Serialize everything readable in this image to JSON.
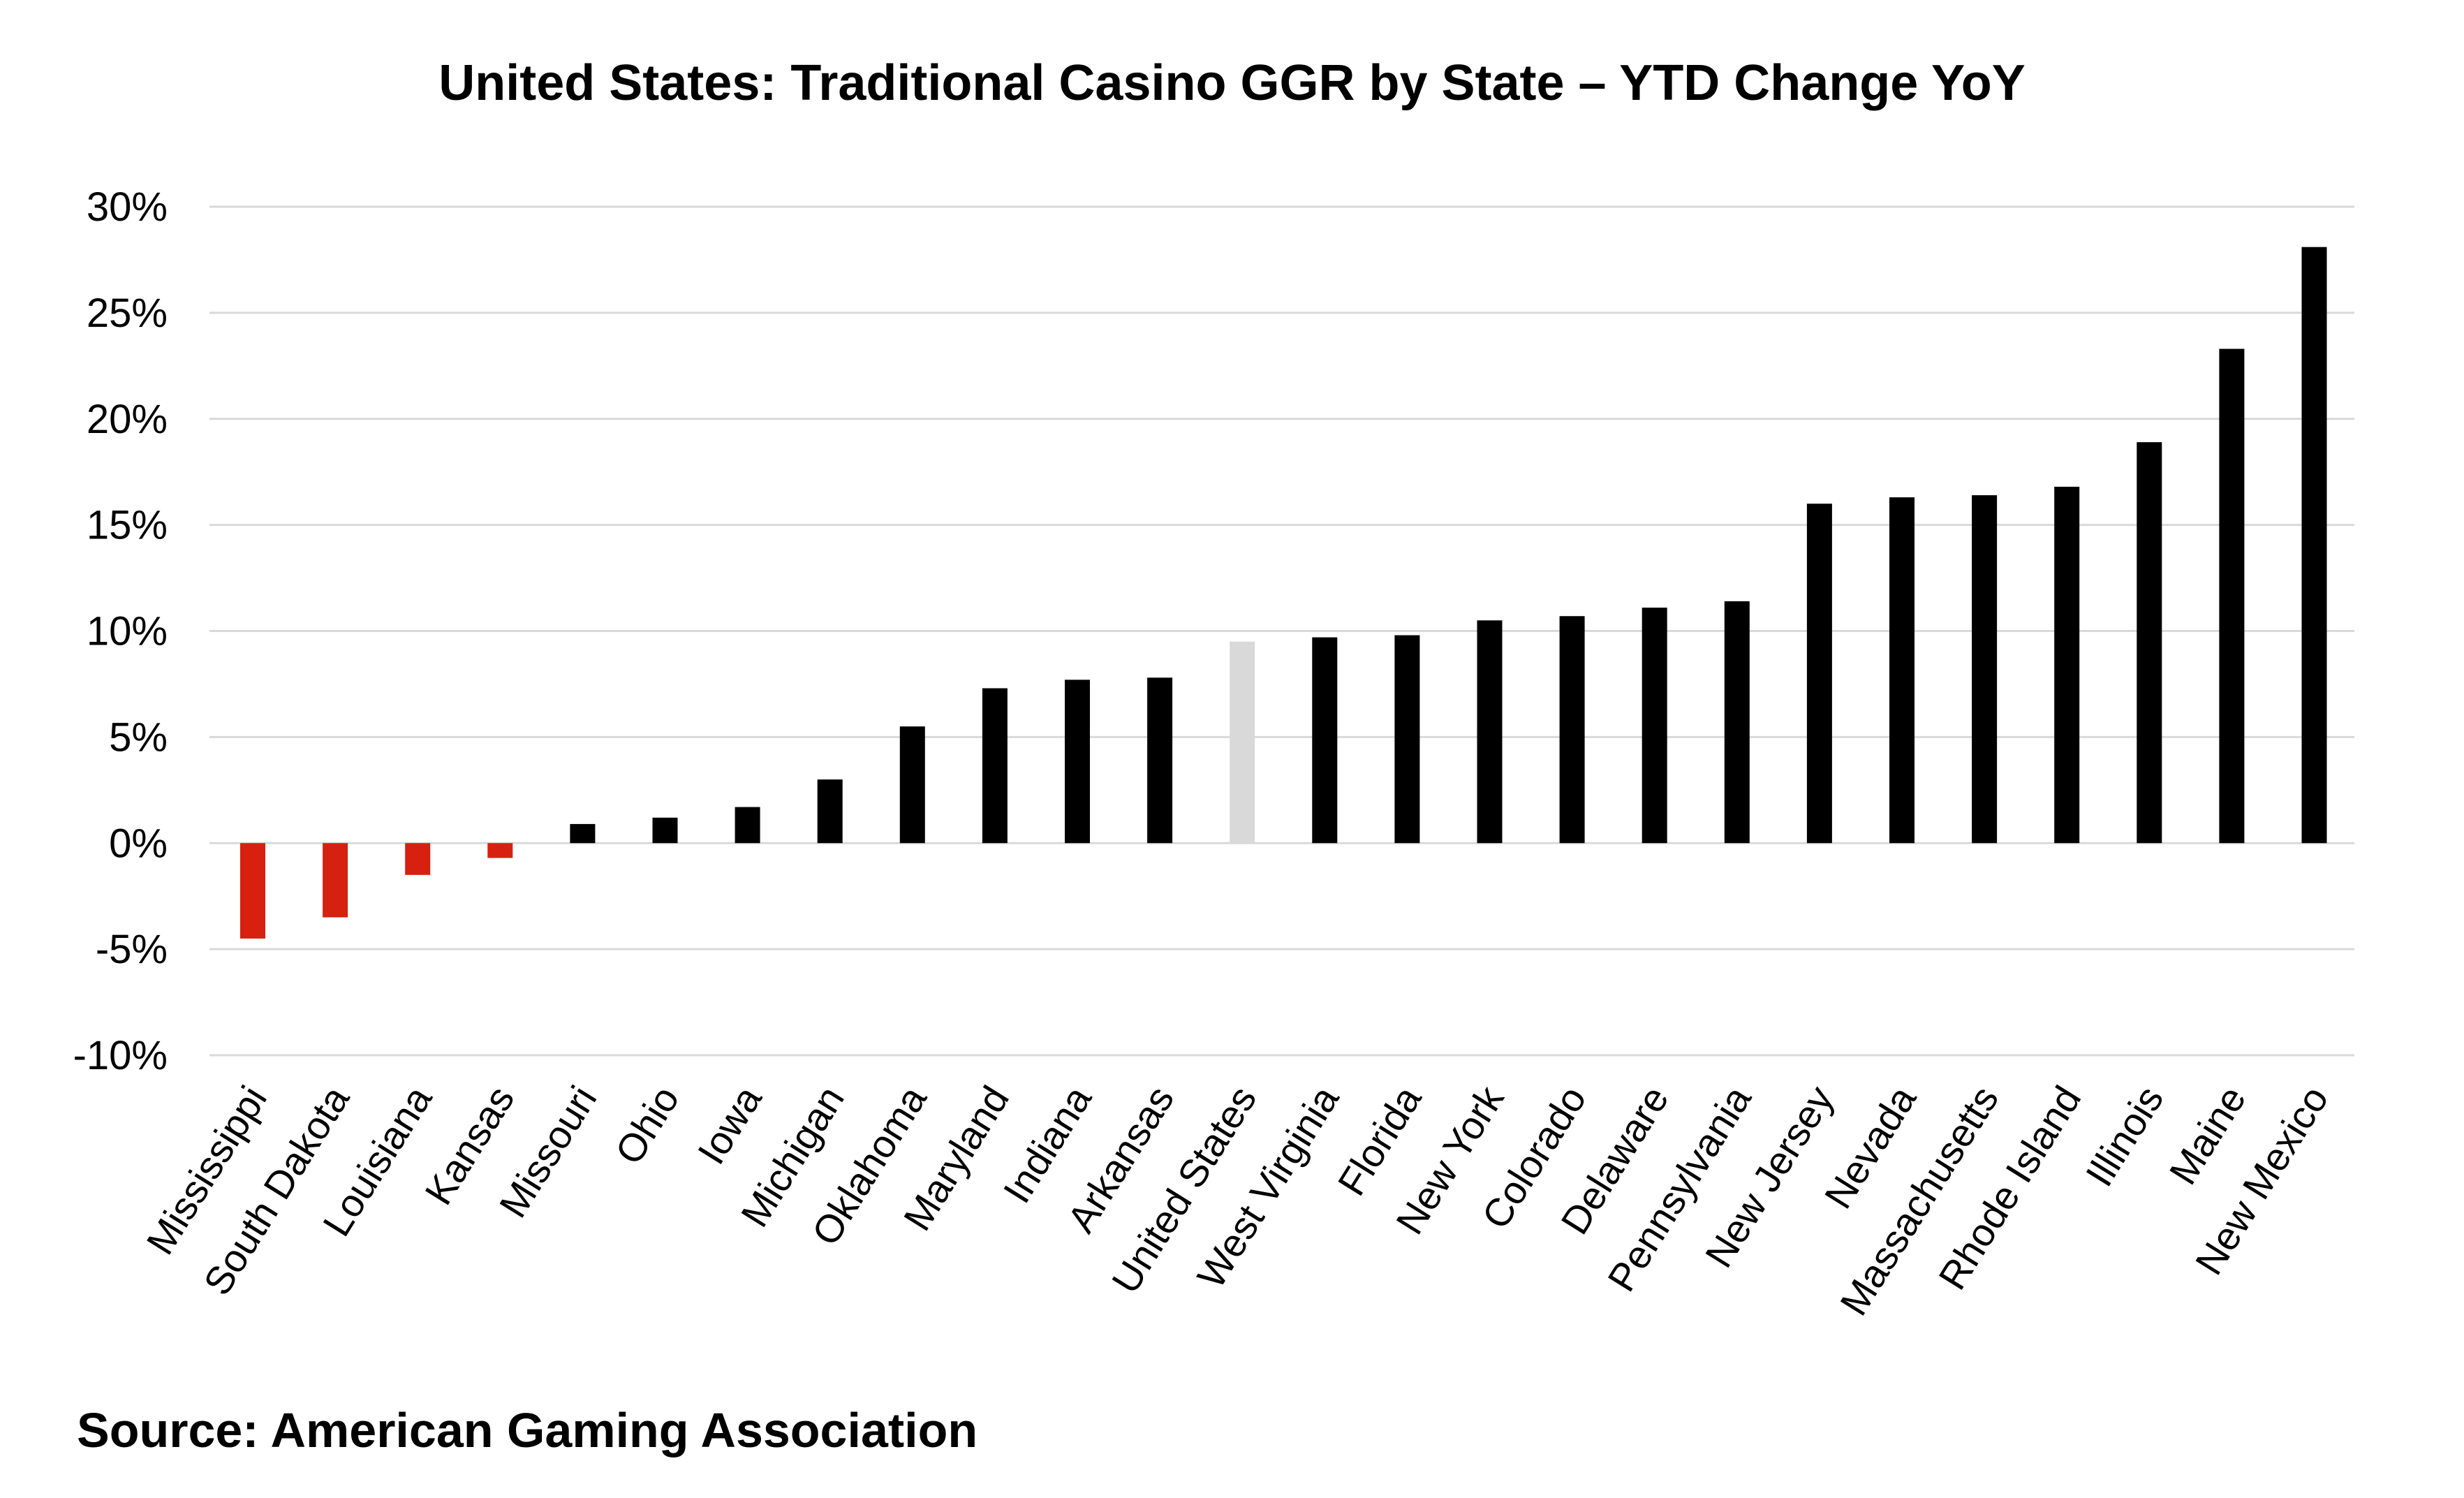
{
  "chart_data": {
    "type": "bar",
    "title": "United States: Traditional Casino GGR by State – YTD Change YoY",
    "source": "Source: American Gaming Association",
    "xlabel": "",
    "ylabel": "",
    "ylim": [
      -10,
      30
    ],
    "yticks": [
      30,
      25,
      20,
      15,
      10,
      5,
      0,
      -5,
      -10
    ],
    "ytick_labels": [
      "30%",
      "25%",
      "20%",
      "15%",
      "10%",
      "5%",
      "0%",
      "-5%",
      "-10%"
    ],
    "grid": true,
    "legend": "none",
    "categories": [
      "Mississippi",
      "South Dakota",
      "Louisiana",
      "Kansas",
      "Missouri",
      "Ohio",
      "Iowa",
      "Michigan",
      "Oklahoma",
      "Maryland",
      "Indiana",
      "Arkansas",
      "United States",
      "West Virginia",
      "Florida",
      "New York",
      "Colorado",
      "Delaware",
      "Pennsylvania",
      "New Jersey",
      "Nevada",
      "Massachusetts",
      "Rhode Island",
      "Illinois",
      "Maine",
      "New Mexico"
    ],
    "values": [
      -4.5,
      -3.5,
      -1.5,
      -0.7,
      0.9,
      1.2,
      1.7,
      3.0,
      5.5,
      7.3,
      7.7,
      7.8,
      9.5,
      9.7,
      9.8,
      10.5,
      10.7,
      11.1,
      11.4,
      16.0,
      16.3,
      16.4,
      16.8,
      18.9,
      23.3,
      28.1
    ],
    "colors": {
      "positive": "#000000",
      "negative": "#d62010",
      "highlight": "#d9d9d9",
      "gridline": "#d9d9d9"
    },
    "highlight_category": "United States"
  }
}
